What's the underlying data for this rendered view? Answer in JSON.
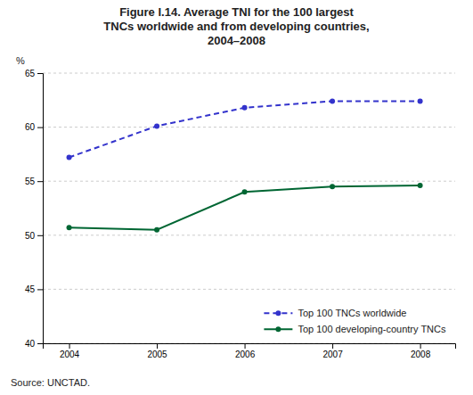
{
  "chart_data": {
    "type": "line",
    "title": "Figure I.14.  Average TNI for the 100 largest\nTNCs worldwide and from developing countries,\n2004–2008",
    "ylabel": "%",
    "source": "Source: UNCTAD.",
    "x": [
      2004,
      2005,
      2006,
      2007,
      2008
    ],
    "series": [
      {
        "name": "Top 100 TNCs worldwide",
        "color": "#3333cc",
        "line_style": "dashed",
        "marker": "circle",
        "values": [
          57.2,
          60.1,
          61.8,
          62.4,
          62.4
        ]
      },
      {
        "name": "Top 100 developing-country TNCs",
        "color": "#006633",
        "line_style": "solid",
        "marker": "circle",
        "values": [
          50.7,
          50.5,
          54.0,
          54.5,
          54.6
        ]
      }
    ],
    "xlim": [
      2003.7,
      2008.4
    ],
    "xticks": [
      2004,
      2005,
      2006,
      2007,
      2008
    ],
    "ylim": [
      40,
      65
    ],
    "yticks": [
      40,
      45,
      50,
      55,
      60,
      65
    ],
    "grid": true,
    "legend": "lower right"
  }
}
